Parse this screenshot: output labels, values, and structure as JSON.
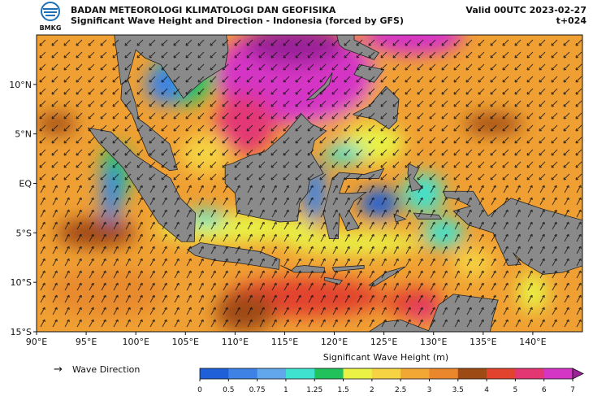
{
  "header": {
    "logo_text": "BMKG",
    "agency": "BADAN METEOROLOGI KLIMATOLOGI DAN GEOFISIKA",
    "title": "Significant Wave Height and Direction - Indonesia (forced by GFS)",
    "valid": "Valid 00UTC 2023-02-27",
    "lead_time": "t+024"
  },
  "map": {
    "xlim": [
      90,
      145
    ],
    "ylim": [
      -15,
      15
    ],
    "xticks": [
      {
        "value": 90,
        "label": "90°E"
      },
      {
        "value": 95,
        "label": "95°E"
      },
      {
        "value": 100,
        "label": "100°E"
      },
      {
        "value": 105,
        "label": "105°E"
      },
      {
        "value": 110,
        "label": "110°E"
      },
      {
        "value": 115,
        "label": "115°E"
      },
      {
        "value": 120,
        "label": "120°E"
      },
      {
        "value": 125,
        "label": "125°E"
      },
      {
        "value": 130,
        "label": "130°E"
      },
      {
        "value": 135,
        "label": "135°E"
      },
      {
        "value": 140,
        "label": "140°E"
      }
    ],
    "yticks": [
      {
        "value": 10,
        "label": "10°N"
      },
      {
        "value": 5,
        "label": "5°N"
      },
      {
        "value": 0,
        "label": "EQ"
      },
      {
        "value": -5,
        "label": "5°S"
      },
      {
        "value": -10,
        "label": "10°S"
      },
      {
        "value": -15,
        "label": "15°S"
      }
    ]
  },
  "legend": {
    "label": "Wave Direction"
  },
  "colorbar": {
    "title": "Significant Wave Height (m)",
    "levels": [
      0,
      0.5,
      0.75,
      1,
      1.25,
      1.5,
      2,
      2.5,
      3,
      3.5,
      4,
      5,
      6,
      7
    ],
    "colors": [
      "#1f5fd8",
      "#3d82e4",
      "#62a6ec",
      "#3fe2cf",
      "#21c25c",
      "#e9f245",
      "#f6d343",
      "#f2a735",
      "#ea862c",
      "#9e4a14",
      "#e2432f",
      "#e33774",
      "#d535c4"
    ],
    "extend_color": "#9a2398"
  }
}
